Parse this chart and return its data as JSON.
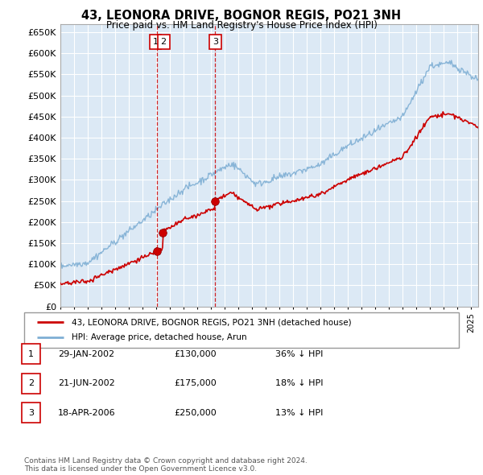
{
  "title": "43, LEONORA DRIVE, BOGNOR REGIS, PO21 3NH",
  "subtitle": "Price paid vs. HM Land Registry's House Price Index (HPI)",
  "background_color": "#dce9f5",
  "grid_color": "#ffffff",
  "transactions": [
    {
      "label": "1",
      "date_num": 2002.08,
      "price": 130000,
      "date_str": "29-JAN-2002",
      "pct": "36% ↓ HPI"
    },
    {
      "label": "2",
      "date_num": 2002.47,
      "price": 175000,
      "date_str": "21-JUN-2002",
      "pct": "18% ↓ HPI"
    },
    {
      "label": "3",
      "date_num": 2006.3,
      "price": 250000,
      "date_str": "18-APR-2006",
      "pct": "13% ↓ HPI"
    }
  ],
  "legend_line1": "43, LEONORA DRIVE, BOGNOR REGIS, PO21 3NH (detached house)",
  "legend_line2": "HPI: Average price, detached house, Arun",
  "footnote": "Contains HM Land Registry data © Crown copyright and database right 2024.\nThis data is licensed under the Open Government Licence v3.0.",
  "table_rows": [
    [
      "1",
      "29-JAN-2002",
      "£130,000",
      "36% ↓ HPI"
    ],
    [
      "2",
      "21-JUN-2002",
      "£175,000",
      "18% ↓ HPI"
    ],
    [
      "3",
      "18-APR-2006",
      "£250,000",
      "13% ↓ HPI"
    ]
  ],
  "ylim": [
    0,
    670000
  ],
  "xlim_start": 1995.0,
  "xlim_end": 2025.5,
  "red_line_color": "#cc0000",
  "blue_line_color": "#7fafd4",
  "marker_color": "#cc0000",
  "vline_color": "#cc0000"
}
